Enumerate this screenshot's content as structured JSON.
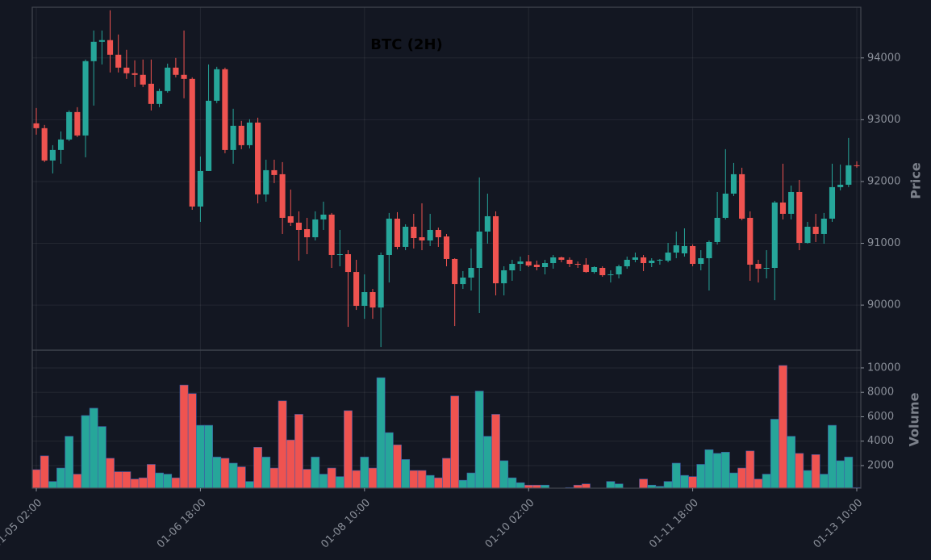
{
  "chart_data": {
    "type": "candlestick",
    "title": "BTC (2H)",
    "ylabel": "Price",
    "volume_label": "Volume",
    "x": [
      "01-05 02:00",
      "01-05 04:00",
      "01-05 06:00",
      "01-05 08:00",
      "01-05 10:00",
      "01-05 12:00",
      "01-05 14:00",
      "01-05 16:00",
      "01-05 18:00",
      "01-05 20:00",
      "01-05 22:00",
      "01-06 00:00",
      "01-06 02:00",
      "01-06 04:00",
      "01-06 06:00",
      "01-06 08:00",
      "01-06 10:00",
      "01-06 12:00",
      "01-06 14:00",
      "01-06 16:00",
      "01-06 18:00",
      "01-06 20:00",
      "01-06 22:00",
      "01-07 00:00",
      "01-07 02:00",
      "01-07 04:00",
      "01-07 06:00",
      "01-07 08:00",
      "01-07 10:00",
      "01-07 12:00",
      "01-07 14:00",
      "01-07 16:00",
      "01-07 18:00",
      "01-07 20:00",
      "01-07 22:00",
      "01-08 00:00",
      "01-08 02:00",
      "01-08 04:00",
      "01-08 06:00",
      "01-08 08:00",
      "01-08 10:00",
      "01-08 12:00",
      "01-08 14:00",
      "01-08 16:00",
      "01-08 18:00",
      "01-08 20:00",
      "01-08 22:00",
      "01-09 00:00",
      "01-09 02:00",
      "01-09 04:00",
      "01-09 06:00",
      "01-09 08:00",
      "01-09 10:00",
      "01-09 12:00",
      "01-09 14:00",
      "01-09 16:00",
      "01-09 18:00",
      "01-09 20:00",
      "01-09 22:00",
      "01-10 00:00",
      "01-10 02:00",
      "01-10 04:00",
      "01-10 06:00",
      "01-10 08:00",
      "01-10 10:00",
      "01-10 12:00",
      "01-10 14:00",
      "01-10 16:00",
      "01-10 18:00",
      "01-10 20:00",
      "01-10 22:00",
      "01-11 00:00",
      "01-11 02:00",
      "01-11 04:00",
      "01-11 06:00",
      "01-11 08:00",
      "01-11 10:00",
      "01-11 12:00",
      "01-11 14:00",
      "01-11 16:00",
      "01-11 18:00",
      "01-11 20:00",
      "01-11 22:00",
      "01-12 00:00",
      "01-12 02:00",
      "01-12 04:00",
      "01-12 06:00",
      "01-12 08:00",
      "01-12 10:00",
      "01-12 12:00",
      "01-12 14:00",
      "01-12 16:00",
      "01-12 18:00",
      "01-12 20:00",
      "01-12 22:00",
      "01-13 00:00",
      "01-13 02:00",
      "01-13 04:00",
      "01-13 06:00",
      "01-13 08:00",
      "01-13 10:00"
    ],
    "open": [
      92941,
      92863,
      92340,
      92510,
      92680,
      93124,
      92745,
      93948,
      94261,
      94288,
      94052,
      93843,
      93752,
      93726,
      93582,
      93255,
      93464,
      93843,
      93726,
      93660,
      91595,
      92170,
      93307,
      93817,
      92510,
      92902,
      92588,
      92954,
      91791,
      92183,
      92118,
      91438,
      91334,
      91229,
      91098,
      91386,
      91464,
      90811,
      90824,
      90536,
      89988,
      90210,
      89961,
      90811,
      91399,
      90942,
      91268,
      91098,
      91046,
      91216,
      91111,
      90746,
      90340,
      90445,
      90602,
      91190,
      91438,
      90353,
      90563,
      90667,
      90706,
      90654,
      90615,
      90680,
      90772,
      90733,
      90667,
      90654,
      90536,
      90602,
      90484,
      90497,
      90628,
      90733,
      90772,
      90680,
      90720,
      90720,
      90850,
      90837,
      90955,
      90667,
      90759,
      91020,
      91412,
      91804,
      92118,
      91412,
      90667,
      90589,
      90602,
      91660,
      91477,
      91830,
      91007,
      91268,
      91151,
      91399,
      91909,
      91948,
      92262
    ],
    "high": [
      93190,
      92915,
      92588,
      92811,
      93150,
      93203,
      93974,
      94444,
      94444,
      94771,
      94379,
      94131,
      93961,
      93974,
      93974,
      93503,
      93908,
      94000,
      94444,
      93686,
      92405,
      93895,
      93856,
      93843,
      93177,
      92981,
      93007,
      93033,
      92353,
      92353,
      92314,
      91870,
      91517,
      91412,
      91517,
      91674,
      91491,
      91216,
      90889,
      90733,
      90497,
      90262,
      90850,
      91491,
      91504,
      91307,
      91477,
      91647,
      91477,
      91255,
      91151,
      90759,
      90550,
      90916,
      92066,
      91804,
      91517,
      90628,
      90733,
      90785,
      90811,
      90720,
      90733,
      90811,
      90785,
      90772,
      90706,
      90759,
      90628,
      90628,
      90563,
      90654,
      90785,
      90850,
      90811,
      90759,
      90746,
      91007,
      91190,
      91242,
      90981,
      90889,
      91046,
      91830,
      92523,
      92301,
      92223,
      91517,
      90733,
      90889,
      91687,
      92288,
      91935,
      92026,
      91347,
      91477,
      91491,
      92288,
      92275,
      92706,
      92327
    ],
    "low": [
      92758,
      92314,
      92131,
      92288,
      92654,
      92719,
      92392,
      93229,
      93895,
      93765,
      93765,
      93660,
      93529,
      93529,
      93150,
      93203,
      93438,
      93686,
      93347,
      91543,
      91347,
      92170,
      93268,
      92458,
      92288,
      92523,
      92536,
      91647,
      91674,
      91974,
      91151,
      91281,
      90720,
      90824,
      91046,
      91216,
      90602,
      90628,
      89648,
      89922,
      89778,
      89778,
      89321,
      90366,
      90903,
      90889,
      90916,
      90889,
      90955,
      90942,
      90628,
      89661,
      90262,
      90236,
      89870,
      90994,
      90157,
      90157,
      90393,
      90550,
      90615,
      90563,
      90497,
      90589,
      90693,
      90615,
      90602,
      90523,
      90510,
      90458,
      90366,
      90432,
      90589,
      90693,
      90550,
      90615,
      90654,
      90693,
      90759,
      90785,
      90628,
      90563,
      90236,
      90981,
      91386,
      91765,
      91373,
      90393,
      90366,
      90432,
      90079,
      91386,
      91386,
      90889,
      90994,
      91020,
      90994,
      91347,
      91857,
      91909,
      92223
    ],
    "close": [
      92863,
      92340,
      92510,
      92680,
      93124,
      92745,
      93948,
      94261,
      94288,
      94052,
      93843,
      93752,
      93726,
      93569,
      93255,
      93464,
      93843,
      93726,
      93660,
      91595,
      92170,
      93307,
      93817,
      92510,
      92902,
      92588,
      92954,
      91791,
      92183,
      92105,
      91412,
      91334,
      91216,
      91098,
      91386,
      91464,
      90811,
      90824,
      90536,
      89988,
      90210,
      89961,
      90811,
      91399,
      90942,
      91268,
      91085,
      91046,
      91216,
      91098,
      90746,
      90340,
      90445,
      90602,
      91190,
      91438,
      90353,
      90563,
      90667,
      90706,
      90641,
      90615,
      90680,
      90772,
      90733,
      90667,
      90654,
      90536,
      90615,
      90484,
      90497,
      90628,
      90733,
      90772,
      90680,
      90720,
      90733,
      90850,
      90968,
      90955,
      90667,
      90759,
      91020,
      91412,
      91804,
      92118,
      91399,
      90654,
      90589,
      90602,
      91660,
      91477,
      91830,
      91007,
      91268,
      91151,
      91399,
      91909,
      91948,
      92262,
      92249
    ],
    "volume": [
      1670,
      2800,
      700,
      1800,
      4400,
      1300,
      6100,
      6700,
      5200,
      2600,
      1500,
      1500,
      900,
      1000,
      2100,
      1400,
      1300,
      1000,
      8600,
      7900,
      5300,
      5300,
      2700,
      2600,
      2200,
      1900,
      700,
      3500,
      2700,
      1800,
      7300,
      4100,
      6200,
      1700,
      2700,
      1300,
      1800,
      1100,
      6500,
      1600,
      2700,
      1800,
      9200,
      4700,
      3700,
      2500,
      1600,
      1600,
      1200,
      1000,
      2600,
      7700,
      800,
      1400,
      8100,
      4400,
      6200,
      2400,
      1000,
      600,
      400,
      400,
      400,
      100,
      100,
      200,
      400,
      500,
      100,
      100,
      700,
      500,
      100,
      100,
      900,
      400,
      300,
      700,
      2200,
      1200,
      1100,
      2100,
      3300,
      3000,
      3100,
      1400,
      1800,
      3200,
      900,
      1300,
      5800,
      10200,
      4400,
      3000,
      1600,
      2900,
      1300,
      5300,
      2400,
      2700,
      200
    ],
    "xticks": [
      "01-05 02:00",
      "01-06 18:00",
      "01-08 10:00",
      "01-10 02:00",
      "01-11 18:00",
      "01-13 10:00"
    ],
    "ylim": [
      89270,
      94820
    ],
    "yticks": [
      90000,
      91000,
      92000,
      93000,
      94000
    ],
    "volume_ylim": [
      150,
      11450
    ],
    "volume_yticks": [
      2000,
      4000,
      6000,
      8000,
      10000
    ],
    "up_color": "#26a69a",
    "down_color": "#ef5350",
    "grid": true
  }
}
